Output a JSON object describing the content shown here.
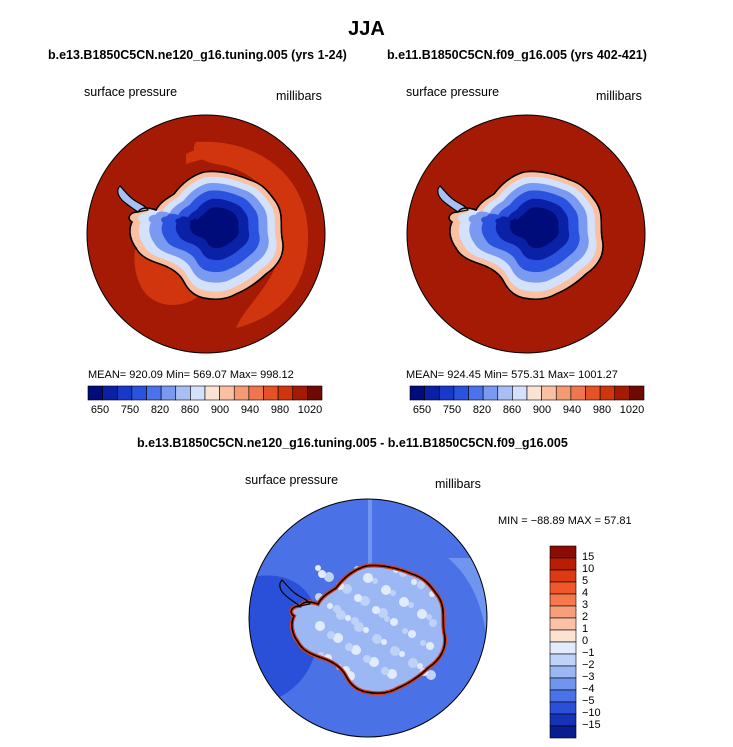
{
  "title": "JJA",
  "palette": {
    "land_deep": "#000c7a",
    "ocean_red": "#e13b12",
    "ocean_orange": "#f26126",
    "diff_blue": "#2b57e0",
    "diff_blue_light": "#4a78ee"
  },
  "panels": [
    {
      "case": "b.e13.B1850C5CN.ne120_g16.tuning.005 (yrs 1-24)",
      "variable": "surface pressure",
      "units": "millibars",
      "stats": "MEAN= 920.09   Min= 569.07   Max= 998.12"
    },
    {
      "case": "b.e11.B1850C5CN.f09_g16.005 (yrs 402-421)",
      "variable": "surface pressure",
      "units": "millibars",
      "stats": "MEAN= 924.45   Min= 575.31   Max= 1001.27"
    }
  ],
  "difference": {
    "title": "b.e13.B1850C5CN.ne120_g16.tuning.005 - b.e11.B1850C5CN.f09_g16.005",
    "variable": "surface pressure",
    "units": "millibars",
    "stats": "MIN = −88.89  MAX =  57.81"
  },
  "chart_data": [
    {
      "type": "heatmap",
      "title": "b.e13.B1850C5CN.ne120_g16.tuning.005 (yrs 1-24)",
      "field": "surface pressure",
      "units": "millibars",
      "mean": 920.09,
      "min": 569.07,
      "max": 998.12,
      "colorbar_levels": [
        650,
        700,
        750,
        800,
        820,
        840,
        860,
        880,
        900,
        920,
        940,
        960,
        980,
        1000,
        1020
      ],
      "colorbar_labels": [
        "650",
        "750",
        "820",
        "860",
        "900",
        "940",
        "980",
        "1020"
      ],
      "colors": [
        "#000c7a",
        "#0a20a6",
        "#1738c8",
        "#2a52df",
        "#4a72ec",
        "#7a9af2",
        "#a8bff6",
        "#d4e1fa",
        "#fbe3d4",
        "#f9c0a2",
        "#f59b74",
        "#f0764d",
        "#e55225",
        "#d0350e",
        "#a41a05",
        "#6e0a02"
      ]
    },
    {
      "type": "heatmap",
      "title": "b.e11.B1850C5CN.f09_g16.005 (yrs 402-421)",
      "field": "surface pressure",
      "units": "millibars",
      "mean": 924.45,
      "min": 575.31,
      "max": 1001.27,
      "colorbar_levels": [
        650,
        700,
        750,
        800,
        820,
        840,
        860,
        880,
        900,
        920,
        940,
        960,
        980,
        1000,
        1020
      ],
      "colorbar_labels": [
        "650",
        "750",
        "820",
        "860",
        "900",
        "940",
        "980",
        "1020"
      ],
      "colors": [
        "#000c7a",
        "#0a20a6",
        "#1738c8",
        "#2a52df",
        "#4a72ec",
        "#7a9af2",
        "#a8bff6",
        "#d4e1fa",
        "#fbe3d4",
        "#f9c0a2",
        "#f59b74",
        "#f0764d",
        "#e55225",
        "#d0350e",
        "#a41a05",
        "#6e0a02"
      ]
    },
    {
      "type": "heatmap",
      "title": "b.e13.B1850C5CN.ne120_g16.tuning.005 - b.e11.B1850C5CN.f09_g16.005",
      "field": "surface pressure",
      "units": "millibars",
      "min": -88.89,
      "max": 57.81,
      "colorbar_labels": [
        "15",
        "10",
        "5",
        "4",
        "3",
        "2",
        "1",
        "0",
        "−1",
        "−2",
        "−3",
        "−4",
        "−5",
        "−10",
        "−15"
      ],
      "colors": [
        "#8a0c04",
        "#b91d06",
        "#dd3a14",
        "#f0582a",
        "#f47a4e",
        "#f89e7a",
        "#fbc2a8",
        "#fde2d2",
        "#e2ebfb",
        "#bfd2f8",
        "#9bb8f4",
        "#7095ee",
        "#4a72e6",
        "#2a50d9",
        "#1632b6",
        "#0a1c8e"
      ]
    }
  ]
}
